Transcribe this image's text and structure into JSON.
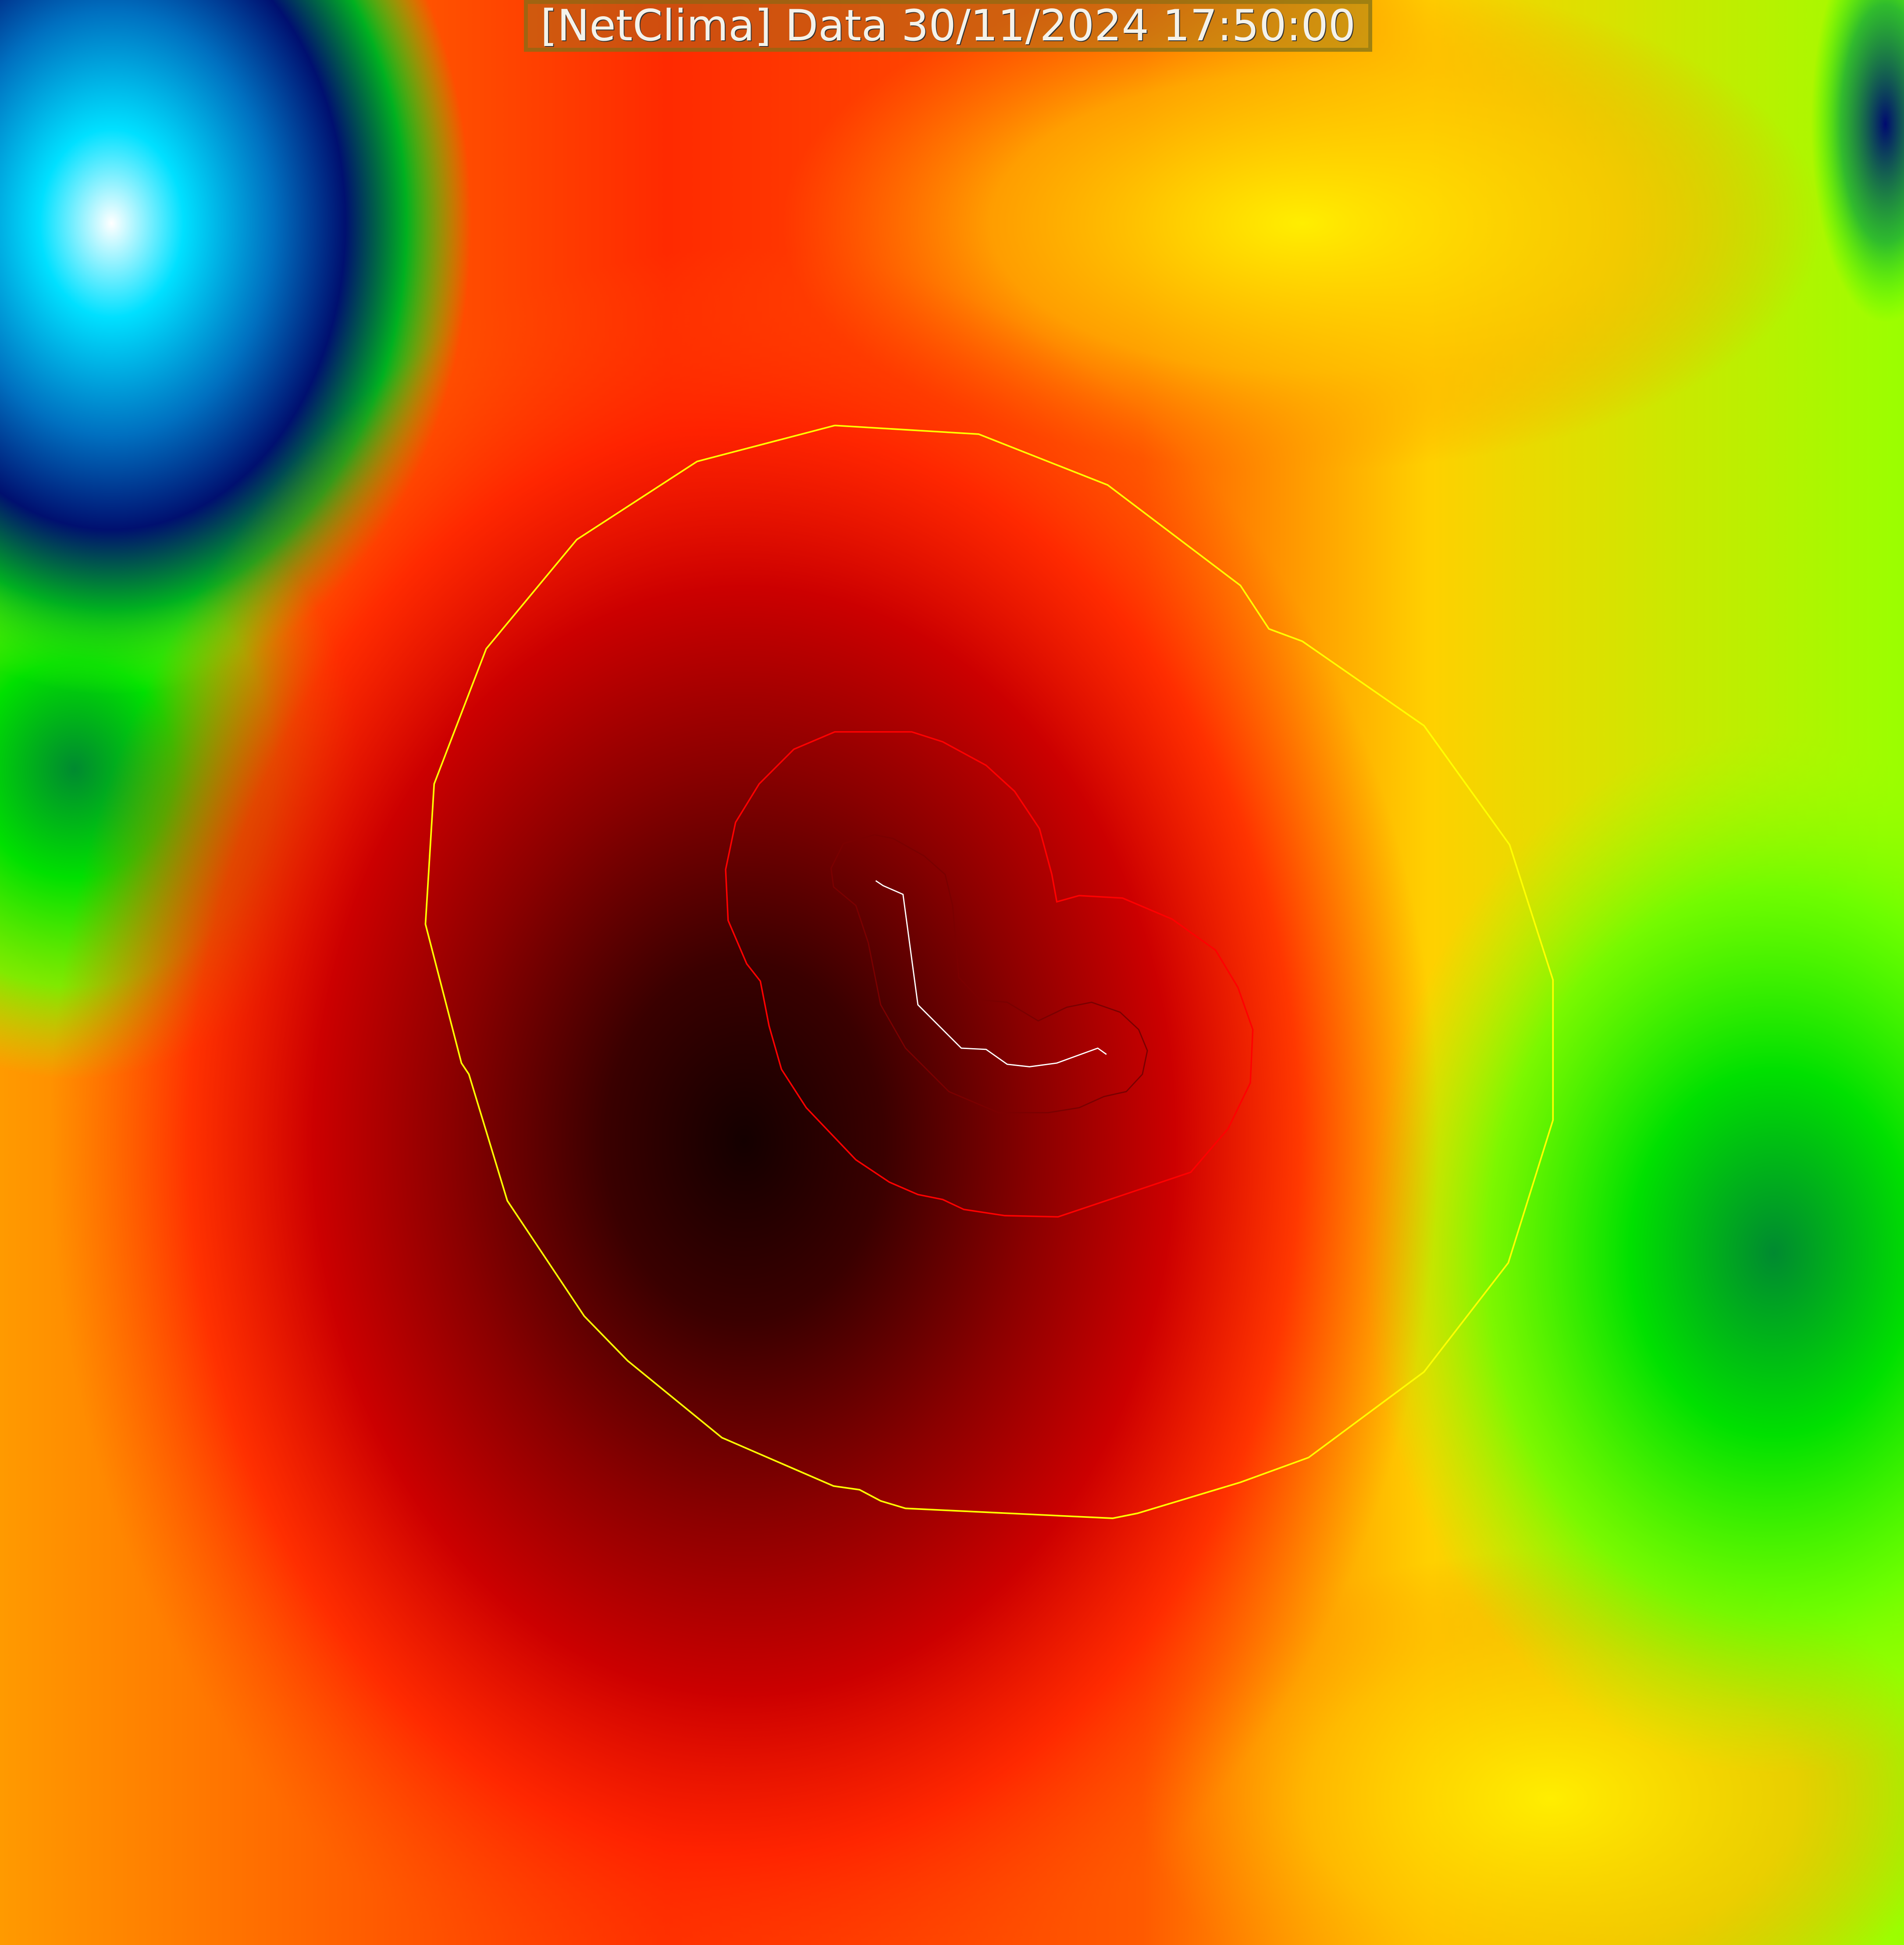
{
  "header": {
    "title": "[NetClima] Data 30/11/2024 17:50:00"
  },
  "map": {
    "type": "weather-heatmap",
    "colors": {
      "core": "#180000",
      "inner": "#9a0000",
      "ring": "#ff0000",
      "outer": "#ff8c00",
      "far": "#b5ff00",
      "green": "#00d020",
      "cold": "#000a70",
      "contour_outer": "#ffff00",
      "contour_inner": "#ff0000",
      "track": "#ffffff"
    }
  }
}
